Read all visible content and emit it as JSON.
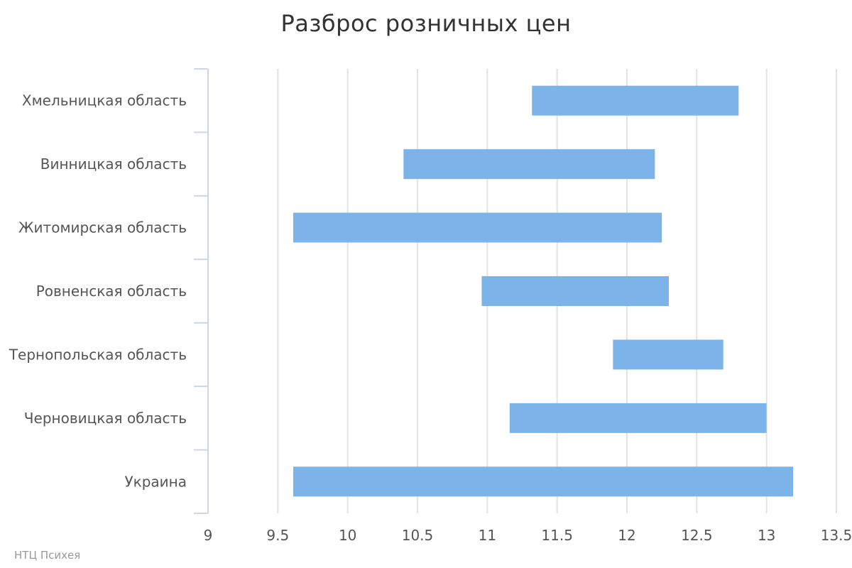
{
  "chart_data": {
    "type": "bar",
    "orientation": "horizontal",
    "bar_style": "floating-range",
    "title": "Разброс розничных цен",
    "xlabel": "",
    "ylabel": "",
    "xlim": [
      9,
      13.5
    ],
    "x_ticks": [
      9,
      9.5,
      10,
      10.5,
      11,
      11.5,
      12,
      12.5,
      13,
      13.5
    ],
    "grid": "vertical",
    "legend": "none",
    "bar_color": "#7cb4ea",
    "categories": [
      "Хмельницкая область",
      "Винницкая область",
      "Житомирская область",
      "Ровненская область",
      "Тернопольская область",
      "Черновицкая область",
      "Украина"
    ],
    "series": [
      {
        "low": [
          11.32,
          10.4,
          9.61,
          10.96,
          11.9,
          11.16,
          9.61
        ],
        "high": [
          12.8,
          12.2,
          12.25,
          12.3,
          12.69,
          13.0,
          13.19
        ]
      }
    ]
  },
  "credits": "НТЦ Психея"
}
